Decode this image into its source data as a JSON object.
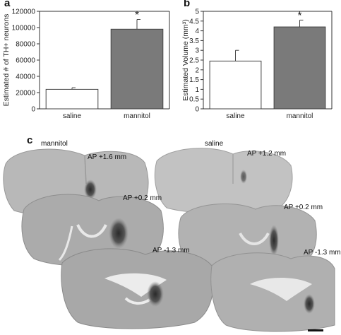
{
  "panels": {
    "a": {
      "letter": "a"
    },
    "b": {
      "letter": "b"
    },
    "c": {
      "letter": "c"
    }
  },
  "chart_data": [
    {
      "type": "bar",
      "panel": "a",
      "categories": [
        "saline",
        "mannitol"
      ],
      "values": [
        24000,
        98000
      ],
      "errors": [
        2000,
        12000
      ],
      "bar_colors": [
        "#ffffff",
        "#7a7a7a"
      ],
      "significance": [
        "",
        "*"
      ],
      "ylabel": "Estimated # of TH+ neurons",
      "ylim": [
        0,
        120000
      ],
      "yticks": [
        "0",
        "20000",
        "40000",
        "60000",
        "80000",
        "100000",
        "120000"
      ],
      "grid": false
    },
    {
      "type": "bar",
      "panel": "b",
      "categories": [
        "saline",
        "mannitol"
      ],
      "values": [
        2.45,
        4.2
      ],
      "errors": [
        0.55,
        0.35
      ],
      "bar_colors": [
        "#ffffff",
        "#7a7a7a"
      ],
      "significance": [
        "",
        "*"
      ],
      "ylabel": "Estimated Volume (mm³)",
      "ylim": [
        0,
        5
      ],
      "yticks": [
        "0",
        "0.5",
        "1",
        "1.5",
        "2",
        "2.5",
        "3",
        "3.5",
        "4",
        "4.5",
        "5"
      ],
      "grid": false
    }
  ],
  "sections": {
    "mannitol_label": "mannitol",
    "saline_label": "saline",
    "mannitol": [
      "AP +1.6 mm",
      "AP +0.2 mm",
      "AP -1.3 mm"
    ],
    "saline": [
      "AP +1.2 mm",
      "AP +0.2 mm",
      "AP -1.3 mm"
    ]
  }
}
